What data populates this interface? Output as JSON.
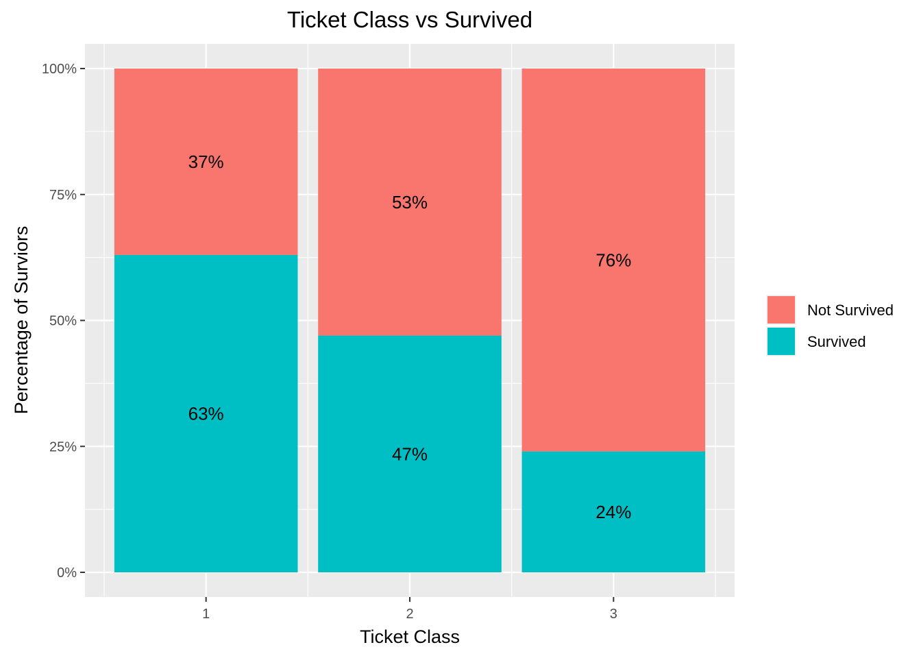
{
  "chart_data": {
    "type": "bar",
    "stacked": true,
    "title": "Ticket Class vs Survived",
    "xlabel": "Ticket Class",
    "ylabel": "Percentage of Surviors",
    "categories": [
      "1",
      "2",
      "3"
    ],
    "ylim": [
      0,
      100
    ],
    "yticks": [
      "0%",
      "25%",
      "50%",
      "75%",
      "100%"
    ],
    "grid": true,
    "legend": "right",
    "series": [
      {
        "name": "Not Survived",
        "color": "#F8766D",
        "values": [
          37,
          53,
          76
        ],
        "labels": [
          "37%",
          "53%",
          "76%"
        ]
      },
      {
        "name": "Survived",
        "color": "#00BFC4",
        "values": [
          63,
          47,
          24
        ],
        "labels": [
          "63%",
          "47%",
          "24%"
        ]
      }
    ],
    "panel_background": "#EBEBEB",
    "grid_color": "#FFFFFF"
  }
}
